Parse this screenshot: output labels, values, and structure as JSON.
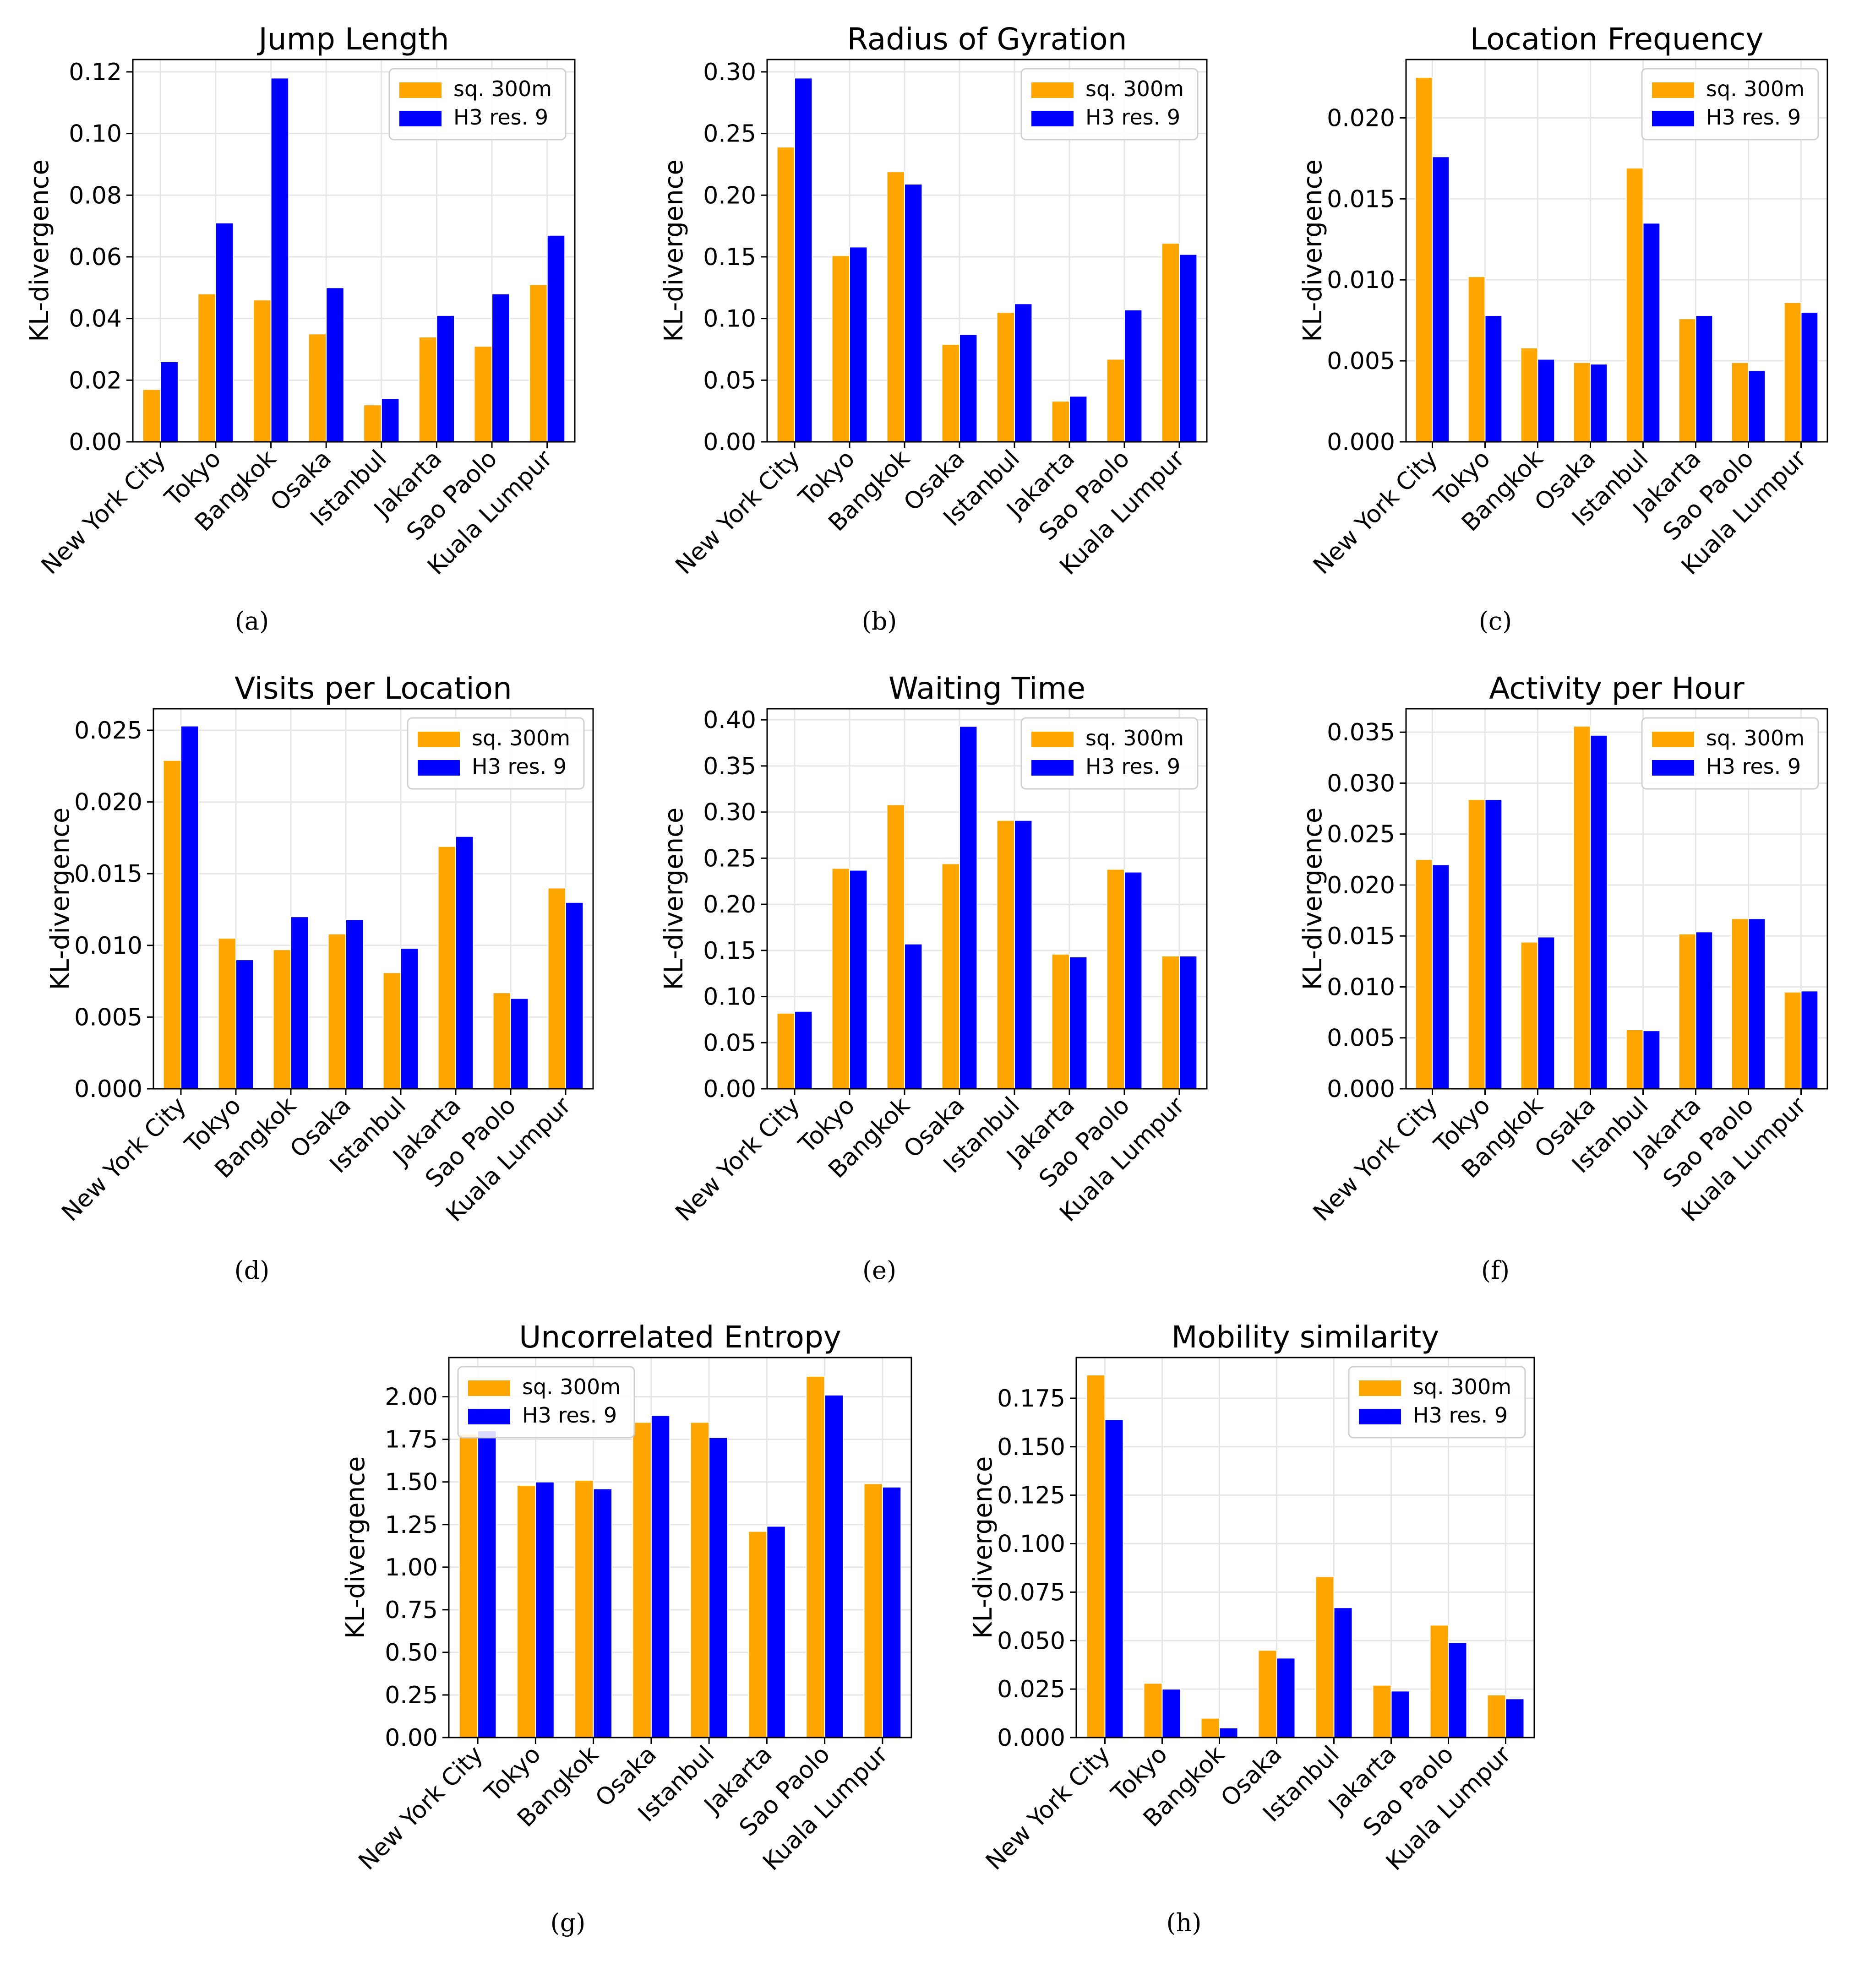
{
  "legend_labels": [
    "sq. 300m",
    "H3 res. 9"
  ],
  "series_colors": [
    "#ffa500",
    "#0000ff"
  ],
  "chart_data": [
    {
      "type": "bar",
      "title": "Jump Length",
      "caption": "(a)",
      "ylabel": "KL-divergence",
      "categories": [
        "New York City",
        "Tokyo",
        "Bangkok",
        "Osaka",
        "Istanbul",
        "Jakarta",
        "Sao Paolo",
        "Kuala Lumpur"
      ],
      "series": [
        {
          "name": "sq. 300m",
          "values": [
            0.017,
            0.048,
            0.046,
            0.035,
            0.012,
            0.034,
            0.031,
            0.051
          ]
        },
        {
          "name": "H3 res. 9",
          "values": [
            0.026,
            0.071,
            0.118,
            0.05,
            0.014,
            0.041,
            0.048,
            0.067
          ]
        }
      ],
      "ylim": [
        0,
        0.124
      ],
      "yticks": [
        "0.00",
        "0.02",
        "0.04",
        "0.06",
        "0.08",
        "0.10",
        "0.12"
      ],
      "ytick_values": [
        0,
        0.02,
        0.04,
        0.06,
        0.08,
        0.1,
        0.12
      ],
      "grid": true,
      "legend": "top-right"
    },
    {
      "type": "bar",
      "title": "Radius of Gyration",
      "caption": "(b)",
      "ylabel": "KL-divergence",
      "categories": [
        "New York City",
        "Tokyo",
        "Bangkok",
        "Osaka",
        "Istanbul",
        "Jakarta",
        "Sao Paolo",
        "Kuala Lumpur"
      ],
      "series": [
        {
          "name": "sq. 300m",
          "values": [
            0.239,
            0.151,
            0.219,
            0.079,
            0.105,
            0.033,
            0.067,
            0.161
          ]
        },
        {
          "name": "H3 res. 9",
          "values": [
            0.295,
            0.158,
            0.209,
            0.087,
            0.112,
            0.037,
            0.107,
            0.152
          ]
        }
      ],
      "ylim": [
        0,
        0.31
      ],
      "yticks": [
        "0.00",
        "0.05",
        "0.10",
        "0.15",
        "0.20",
        "0.25",
        "0.30"
      ],
      "ytick_values": [
        0,
        0.05,
        0.1,
        0.15,
        0.2,
        0.25,
        0.3
      ],
      "grid": true,
      "legend": "top-right"
    },
    {
      "type": "bar",
      "title": "Location Frequency",
      "caption": "(c)",
      "ylabel": "KL-divergence",
      "categories": [
        "New York City",
        "Tokyo",
        "Bangkok",
        "Osaka",
        "Istanbul",
        "Jakarta",
        "Sao Paolo",
        "Kuala Lumpur"
      ],
      "series": [
        {
          "name": "sq. 300m",
          "values": [
            0.0225,
            0.0102,
            0.0058,
            0.0049,
            0.0169,
            0.0076,
            0.0049,
            0.0086
          ]
        },
        {
          "name": "H3 res. 9",
          "values": [
            0.0176,
            0.0078,
            0.0051,
            0.0048,
            0.0135,
            0.0078,
            0.0044,
            0.008
          ]
        }
      ],
      "ylim": [
        0,
        0.0236
      ],
      "yticks": [
        "0.000",
        "0.005",
        "0.010",
        "0.015",
        "0.020"
      ],
      "ytick_values": [
        0,
        0.005,
        0.01,
        0.015,
        0.02
      ],
      "grid": true,
      "legend": "top-right"
    },
    {
      "type": "bar",
      "title": "Visits per Location",
      "caption": "(d)",
      "ylabel": "KL-divergence",
      "categories": [
        "New York City",
        "Tokyo",
        "Bangkok",
        "Osaka",
        "Istanbul",
        "Jakarta",
        "Sao Paolo",
        "Kuala Lumpur"
      ],
      "series": [
        {
          "name": "sq. 300m",
          "values": [
            0.0229,
            0.0105,
            0.0097,
            0.0108,
            0.0081,
            0.0169,
            0.0067,
            0.014
          ]
        },
        {
          "name": "H3 res. 9",
          "values": [
            0.0253,
            0.009,
            0.012,
            0.0118,
            0.0098,
            0.0176,
            0.0063,
            0.013
          ]
        }
      ],
      "ylim": [
        0,
        0.0265
      ],
      "yticks": [
        "0.000",
        "0.005",
        "0.010",
        "0.015",
        "0.020",
        "0.025"
      ],
      "ytick_values": [
        0,
        0.005,
        0.01,
        0.015,
        0.02,
        0.025
      ],
      "grid": true,
      "legend": "top-right"
    },
    {
      "type": "bar",
      "title": "Waiting Time",
      "caption": "(e)",
      "ylabel": "KL-divergence",
      "categories": [
        "New York City",
        "Tokyo",
        "Bangkok",
        "Osaka",
        "Istanbul",
        "Jakarta",
        "Sao Paolo",
        "Kuala Lumpur"
      ],
      "series": [
        {
          "name": "sq. 300m",
          "values": [
            0.082,
            0.239,
            0.308,
            0.244,
            0.291,
            0.146,
            0.238,
            0.144
          ]
        },
        {
          "name": "H3 res. 9",
          "values": [
            0.084,
            0.237,
            0.157,
            0.393,
            0.291,
            0.143,
            0.235,
            0.144
          ]
        }
      ],
      "ylim": [
        0,
        0.412
      ],
      "yticks": [
        "0.00",
        "0.05",
        "0.10",
        "0.15",
        "0.20",
        "0.25",
        "0.30",
        "0.35",
        "0.40"
      ],
      "ytick_values": [
        0,
        0.05,
        0.1,
        0.15,
        0.2,
        0.25,
        0.3,
        0.35,
        0.4
      ],
      "grid": true,
      "legend": "top-right"
    },
    {
      "type": "bar",
      "title": "Activity per Hour",
      "caption": "(f)",
      "ylabel": "KL-divergence",
      "categories": [
        "New York City",
        "Tokyo",
        "Bangkok",
        "Osaka",
        "Istanbul",
        "Jakarta",
        "Sao Paolo",
        "Kuala Lumpur"
      ],
      "series": [
        {
          "name": "sq. 300m",
          "values": [
            0.0225,
            0.0284,
            0.0144,
            0.0356,
            0.0058,
            0.0152,
            0.0167,
            0.0095
          ]
        },
        {
          "name": "H3 res. 9",
          "values": [
            0.022,
            0.0284,
            0.0149,
            0.0347,
            0.0057,
            0.0154,
            0.0167,
            0.0096
          ]
        }
      ],
      "ylim": [
        0,
        0.0373
      ],
      "yticks": [
        "0.000",
        "0.005",
        "0.010",
        "0.015",
        "0.020",
        "0.025",
        "0.030",
        "0.035"
      ],
      "ytick_values": [
        0,
        0.005,
        0.01,
        0.015,
        0.02,
        0.025,
        0.03,
        0.035
      ],
      "grid": true,
      "legend": "top-right"
    },
    {
      "type": "bar",
      "title": "Uncorrelated Entropy",
      "caption": "(g)",
      "ylabel": "KL-divergence",
      "categories": [
        "New York City",
        "Tokyo",
        "Bangkok",
        "Osaka",
        "Istanbul",
        "Jakarta",
        "Sao Paolo",
        "Kuala Lumpur"
      ],
      "series": [
        {
          "name": "sq. 300m",
          "values": [
            1.78,
            1.48,
            1.51,
            1.85,
            1.85,
            1.21,
            2.12,
            1.49
          ]
        },
        {
          "name": "H3 res. 9",
          "values": [
            1.8,
            1.5,
            1.46,
            1.89,
            1.76,
            1.24,
            2.01,
            1.47
          ]
        }
      ],
      "ylim": [
        0,
        2.23
      ],
      "yticks": [
        "0.00",
        "0.25",
        "0.50",
        "0.75",
        "1.00",
        "1.25",
        "1.50",
        "1.75",
        "2.00"
      ],
      "ytick_values": [
        0,
        0.25,
        0.5,
        0.75,
        1.0,
        1.25,
        1.5,
        1.75,
        2.0
      ],
      "grid": true,
      "legend": "top-left"
    },
    {
      "type": "bar",
      "title": "Mobility similarity",
      "caption": "(h)",
      "ylabel": "KL-divergence",
      "categories": [
        "New York City",
        "Tokyo",
        "Bangkok",
        "Osaka",
        "Istanbul",
        "Jakarta",
        "Sao Paolo",
        "Kuala Lumpur"
      ],
      "series": [
        {
          "name": "sq. 300m",
          "values": [
            0.187,
            0.028,
            0.01,
            0.045,
            0.083,
            0.027,
            0.058,
            0.022
          ]
        },
        {
          "name": "H3 res. 9",
          "values": [
            0.164,
            0.025,
            0.005,
            0.041,
            0.067,
            0.024,
            0.049,
            0.02
          ]
        }
      ],
      "ylim": [
        0,
        0.196
      ],
      "yticks": [
        "0.000",
        "0.025",
        "0.050",
        "0.075",
        "0.100",
        "0.125",
        "0.150",
        "0.175"
      ],
      "ytick_values": [
        0,
        0.025,
        0.05,
        0.075,
        0.1,
        0.125,
        0.15,
        0.175
      ],
      "grid": true,
      "legend": "top-right"
    }
  ]
}
